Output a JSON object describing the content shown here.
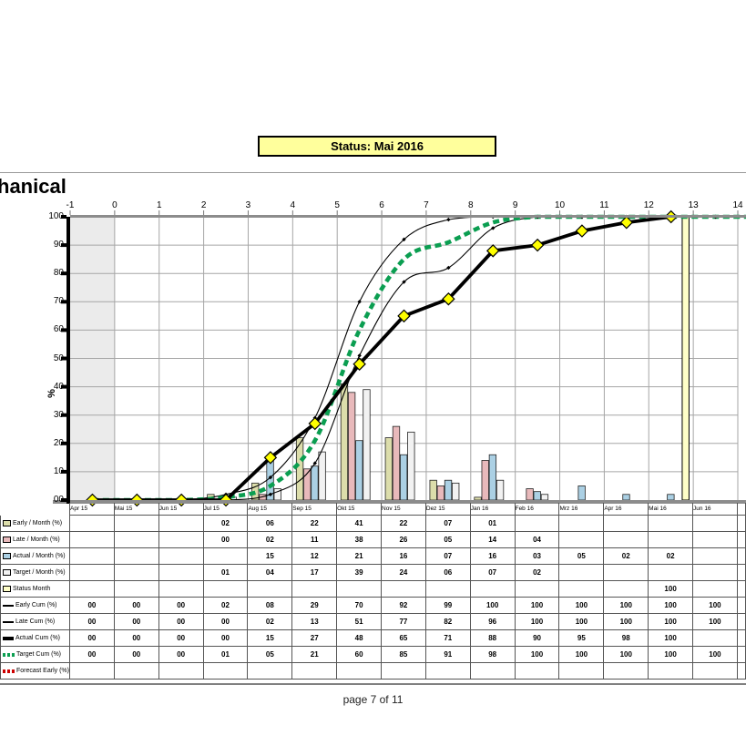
{
  "status_banner": {
    "label": "Status:  Mai 2016"
  },
  "footer": {
    "page_label": "page 7 of 11"
  },
  "chart_data": {
    "type": "combo-bar-line-progress-s-curve",
    "title": "hanical",
    "ylabel": "%",
    "ylim": [
      0,
      100
    ],
    "grid": true,
    "y_ticks": [
      "100",
      "90",
      "80",
      "70",
      "60",
      "50",
      "40",
      "30",
      "20",
      "10",
      "00"
    ],
    "top_axis_ticks": [
      "-1",
      "0",
      "1",
      "2",
      "3",
      "4",
      "5",
      "6",
      "7",
      "8",
      "9",
      "10",
      "11",
      "12",
      "13",
      "14"
    ],
    "categories": [
      "Apr 15",
      "Mai 15",
      "Jun 15",
      "Jul 15",
      "Aug 15",
      "Sep 15",
      "Okt 15",
      "Nov 15",
      "Dez 15",
      "Jan 16",
      "Feb 16",
      "Mrz 16",
      "Apr 16",
      "Mai 16",
      "Jun 16"
    ],
    "bar_series": [
      {
        "name": "Early / Month (%)",
        "color": "#dcddab",
        "values": [
          null,
          null,
          null,
          2,
          6,
          22,
          41,
          22,
          7,
          1,
          null,
          null,
          null,
          null,
          null
        ]
      },
      {
        "name": "Late / Month (%)",
        "color": "#e8b9bb",
        "values": [
          null,
          null,
          null,
          0,
          2,
          11,
          38,
          26,
          5,
          14,
          4,
          null,
          null,
          null,
          null
        ]
      },
      {
        "name": "Actual / Month (%)",
        "color": "#abd0e4",
        "values": [
          null,
          null,
          null,
          null,
          15,
          12,
          21,
          16,
          7,
          16,
          3,
          5,
          2,
          2,
          null
        ]
      },
      {
        "name": "Target / Month (%)",
        "color": "#f2f2f2",
        "values": [
          null,
          null,
          null,
          1,
          4,
          17,
          39,
          24,
          6,
          7,
          2,
          null,
          null,
          null,
          null
        ]
      }
    ],
    "status_series": {
      "name": "Status Month",
      "color": "#ffffc8",
      "values": [
        null,
        null,
        null,
        null,
        null,
        null,
        null,
        null,
        null,
        null,
        null,
        null,
        null,
        100,
        null
      ]
    },
    "line_series": [
      {
        "name": "Early Cum (%)",
        "style": "thin-black",
        "values": [
          0,
          0,
          0,
          2,
          8,
          29,
          70,
          92,
          99,
          100,
          100,
          100,
          100,
          100,
          100
        ]
      },
      {
        "name": "Late Cum (%)",
        "style": "thin-black",
        "values": [
          0,
          0,
          0,
          0,
          2,
          13,
          51,
          77,
          82,
          96,
          100,
          100,
          100,
          100,
          100
        ]
      },
      {
        "name": "Actual Cum (%)",
        "style": "thick-black-yellow-diamonds",
        "values": [
          0,
          0,
          0,
          0,
          15,
          27,
          48,
          65,
          71,
          88,
          90,
          95,
          98,
          100,
          null
        ]
      },
      {
        "name": "Target Cum (%)",
        "style": "green-dashed",
        "values": [
          0,
          0,
          0,
          1,
          5,
          21,
          60,
          85,
          91,
          98,
          100,
          100,
          100,
          100,
          100
        ]
      },
      {
        "name": "Forecast Early (%)",
        "style": "red-dashed",
        "values": [
          null,
          null,
          null,
          null,
          null,
          null,
          null,
          null,
          null,
          null,
          null,
          null,
          null,
          null,
          null
        ]
      }
    ],
    "colors": {
      "diamond_marker": "#ffff00",
      "target_green": "#0b9e51",
      "forecast_red": "#cc0000",
      "axis_gray": "#8c8c8c",
      "gridline": "#a6a6a6",
      "left_band": "#ebebeb",
      "status_bar": "#ffffc8",
      "status_banner_bg": "#ffff9c"
    }
  },
  "table": {
    "columns": [
      "Apr 15",
      "Mai 15",
      "Jun 15",
      "Jul 15",
      "Aug 15",
      "Sep 15",
      "Okt 15",
      "Nov 15",
      "Dez 15",
      "Jan 16",
      "Feb 16",
      "Mrz 16",
      "Apr 16",
      "Mai 16",
      "Jun 16"
    ],
    "rows": [
      {
        "key": "early-month",
        "label": "Early / Month (%)",
        "swatch": "bar",
        "swatch_color": "#dcddab",
        "cells": [
          "",
          "",
          "",
          "02",
          "06",
          "22",
          "41",
          "22",
          "07",
          "01",
          "",
          "",
          "",
          "",
          ""
        ]
      },
      {
        "key": "late-month",
        "label": "Late / Month (%)",
        "swatch": "bar",
        "swatch_color": "#e8b9bb",
        "cells": [
          "",
          "",
          "",
          "00",
          "02",
          "11",
          "38",
          "26",
          "05",
          "14",
          "04",
          "",
          "",
          "",
          ""
        ]
      },
      {
        "key": "actual-month",
        "label": "Actual / Month (%)",
        "swatch": "bar",
        "swatch_color": "#abd0e4",
        "cells": [
          "",
          "",
          "",
          "",
          "15",
          "12",
          "21",
          "16",
          "07",
          "16",
          "03",
          "05",
          "02",
          "02",
          ""
        ]
      },
      {
        "key": "target-month",
        "label": "Target / Month (%)",
        "swatch": "bar",
        "swatch_color": "#f2f2f2",
        "cells": [
          "",
          "",
          "",
          "01",
          "04",
          "17",
          "39",
          "24",
          "06",
          "07",
          "02",
          "",
          "",
          "",
          ""
        ]
      },
      {
        "key": "status-month",
        "label": "Status Month",
        "swatch": "bar",
        "swatch_color": "#ffffc8",
        "cells": [
          "",
          "",
          "",
          "",
          "",
          "",
          "",
          "",
          "",
          "",
          "",
          "",
          "",
          "100",
          ""
        ]
      },
      {
        "key": "early-cum",
        "label": "Early Cum (%)",
        "swatch": "line-thin",
        "swatch_color": "#000000",
        "cells": [
          "00",
          "00",
          "00",
          "02",
          "08",
          "29",
          "70",
          "92",
          "99",
          "100",
          "100",
          "100",
          "100",
          "100",
          "100"
        ]
      },
      {
        "key": "late-cum",
        "label": "Late Cum (%)",
        "swatch": "line-thin",
        "swatch_color": "#000000",
        "cells": [
          "00",
          "00",
          "00",
          "00",
          "02",
          "13",
          "51",
          "77",
          "82",
          "96",
          "100",
          "100",
          "100",
          "100",
          "100"
        ]
      },
      {
        "key": "actual-cum",
        "label": "Actual Cum (%)",
        "swatch": "line-thick",
        "swatch_color": "#000000",
        "cells": [
          "00",
          "00",
          "00",
          "00",
          "15",
          "27",
          "48",
          "65",
          "71",
          "88",
          "90",
          "95",
          "98",
          "100",
          ""
        ]
      },
      {
        "key": "target-cum",
        "label": "Target Cum (%)",
        "swatch": "dash-green",
        "swatch_color": "#0b9e51",
        "cells": [
          "00",
          "00",
          "00",
          "01",
          "05",
          "21",
          "60",
          "85",
          "91",
          "98",
          "100",
          "100",
          "100",
          "100",
          "100"
        ]
      },
      {
        "key": "forecast-early",
        "label": "Forecast Early (%)",
        "swatch": "dash-red",
        "swatch_color": "#cc0000",
        "cells": [
          "",
          "",
          "",
          "",
          "",
          "",
          "",
          "",
          "",
          "",
          "",
          "",
          "",
          "",
          ""
        ]
      }
    ]
  }
}
